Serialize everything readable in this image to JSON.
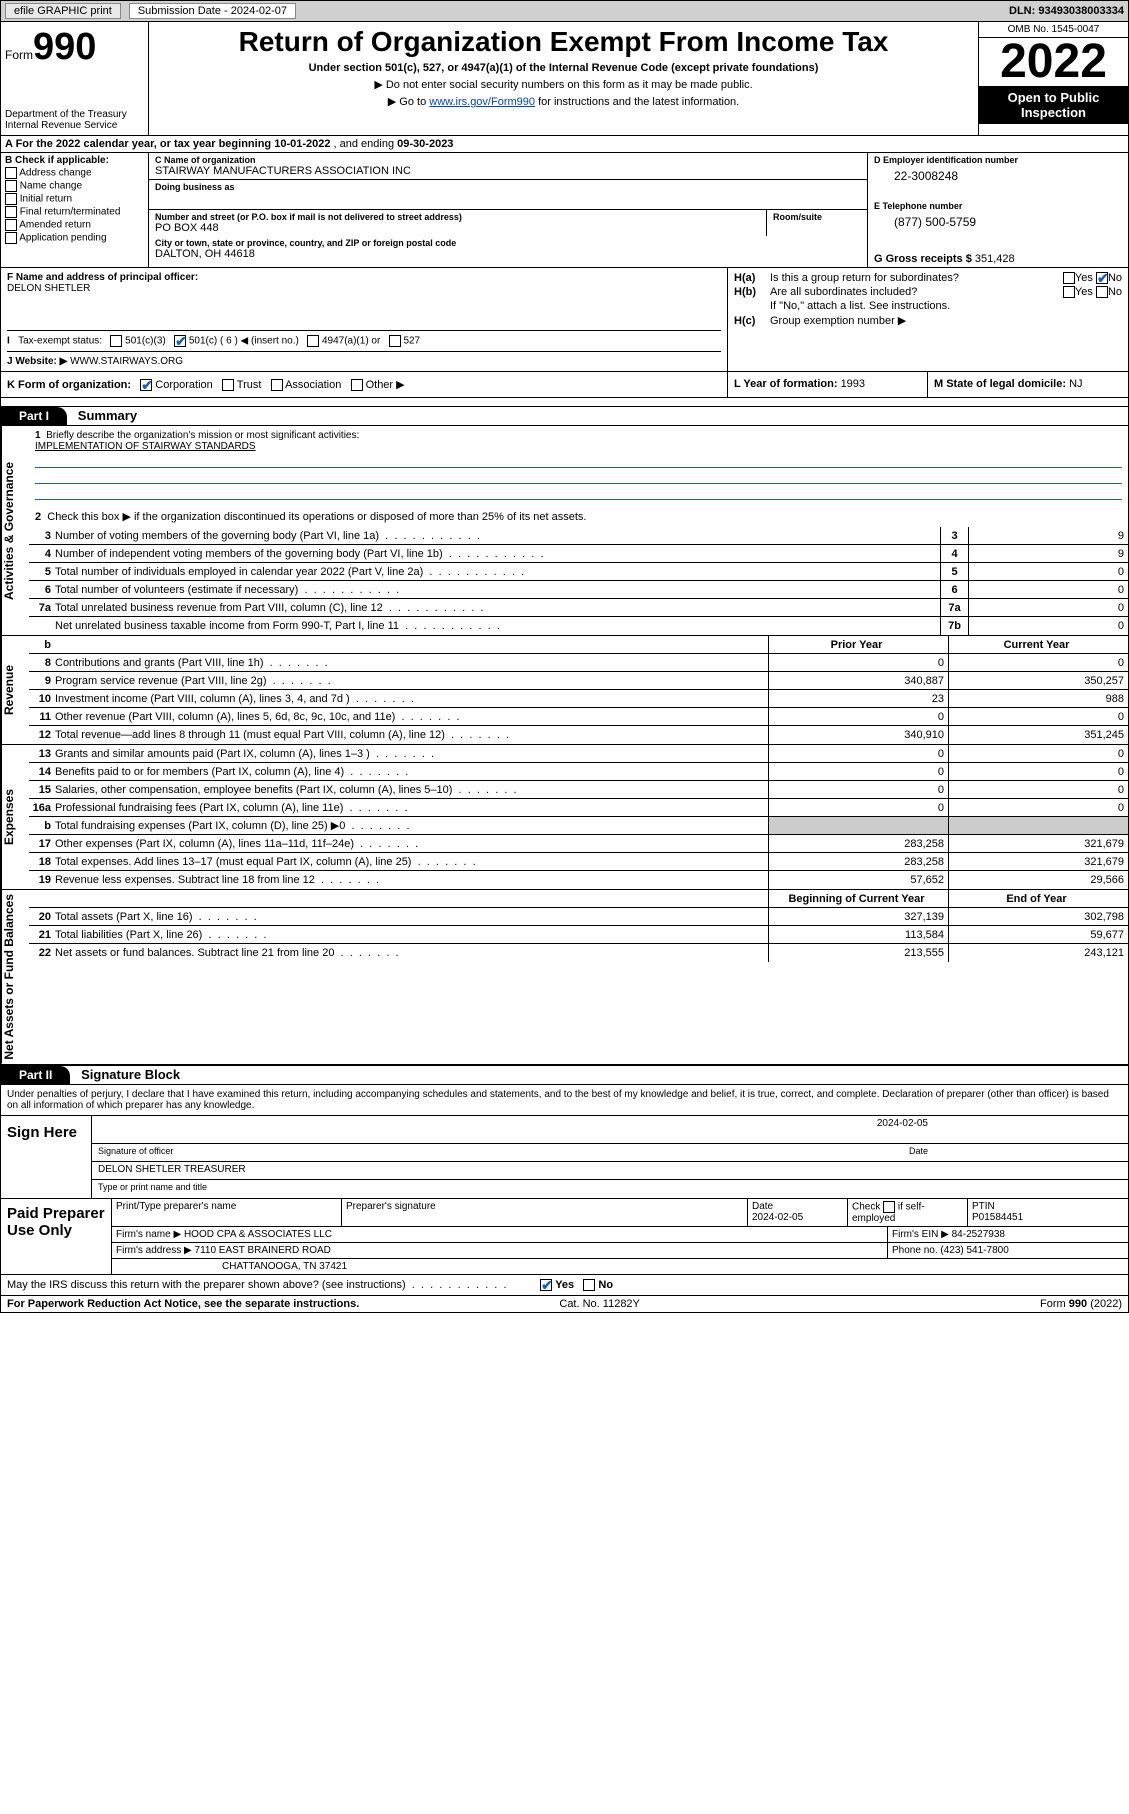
{
  "topbar": {
    "efile_label": "efile GRAPHIC print",
    "sub_label": "Submission Date - 2024-02-07",
    "dln": "DLN: 93493038003334"
  },
  "header": {
    "form_prefix": "Form",
    "form_number": "990",
    "dept": "Department of the Treasury",
    "irs": "Internal Revenue Service",
    "title": "Return of Organization Exempt From Income Tax",
    "subtitle": "Under section 501(c), 527, or 4947(a)(1) of the Internal Revenue Code (except private foundations)",
    "note1": "▶ Do not enter social security numbers on this form as it may be made public.",
    "note2_pre": "▶ Go to ",
    "note2_link": "www.irs.gov/Form990",
    "note2_post": " for instructions and the latest information.",
    "omb": "OMB No. 1545-0047",
    "year": "2022",
    "open": "Open to Public Inspection"
  },
  "row_a": {
    "prefix": "A For the 2022 calendar year, or tax year beginning ",
    "begin": "10-01-2022",
    "mid": " , and ending ",
    "end": "09-30-2023"
  },
  "b": {
    "title": "B Check if applicable:",
    "opts": [
      "Address change",
      "Name change",
      "Initial return",
      "Final return/terminated",
      "Amended return",
      "Application pending"
    ]
  },
  "c": {
    "name_lbl": "C Name of organization",
    "name": "STAIRWAY MANUFACTURERS ASSOCIATION INC",
    "dba_lbl": "Doing business as",
    "street_lbl": "Number and street (or P.O. box if mail is not delivered to street address)",
    "street": "PO BOX 448",
    "suite_lbl": "Room/suite",
    "city_lbl": "City or town, state or province, country, and ZIP or foreign postal code",
    "city": "DALTON, OH  44618"
  },
  "d": {
    "ein_lbl": "D Employer identification number",
    "ein": "22-3008248",
    "tel_lbl": "E Telephone number",
    "tel": "(877) 500-5759",
    "gross_lbl": "G Gross receipts $ ",
    "gross": "351,428"
  },
  "f": {
    "lbl": "F Name and address of principal officer:",
    "name": "DELON SHETLER"
  },
  "h": {
    "a_lbl": "H(a)",
    "a_txt": "Is this a group return for subordinates?",
    "b_lbl": "H(b)",
    "b_txt": "Are all subordinates included?",
    "b_note": "If \"No,\" attach a list. See instructions.",
    "c_lbl": "H(c)",
    "c_txt": "Group exemption number ▶",
    "yes": "Yes",
    "no": "No"
  },
  "i": {
    "lbl": "Tax-exempt status:",
    "o1": "501(c)(3)",
    "o2": "501(c) ( 6 ) ◀ (insert no.)",
    "o3": "4947(a)(1) or",
    "o4": "527"
  },
  "j": {
    "lbl": "J   Website: ▶ ",
    "val": "WWW.STAIRWAYS.ORG"
  },
  "k": {
    "lbl": "K Form of organization:",
    "o1": "Corporation",
    "o2": "Trust",
    "o3": "Association",
    "o4": "Other ▶"
  },
  "l": {
    "lbl": "L Year of formation: ",
    "val": "1993"
  },
  "m": {
    "lbl": "M State of legal domicile: ",
    "val": "NJ"
  },
  "parts": {
    "p1": "Part I",
    "p1_title": "Summary",
    "p2": "Part II",
    "p2_title": "Signature Block"
  },
  "summary": {
    "vlabels": {
      "gov": "Activities & Governance",
      "rev": "Revenue",
      "exp": "Expenses",
      "net": "Net Assets or Fund Balances"
    },
    "l1": "Briefly describe the organization's mission or most significant activities:",
    "mission": "IMPLEMENTATION OF STAIRWAY STANDARDS",
    "l2": "Check this box ▶       if the organization discontinued its operations or disposed of more than 25% of its net assets.",
    "rows_gov": [
      {
        "n": "3",
        "t": "Number of voting members of the governing body (Part VI, line 1a)",
        "b": "3",
        "v": "9"
      },
      {
        "n": "4",
        "t": "Number of independent voting members of the governing body (Part VI, line 1b)",
        "b": "4",
        "v": "9"
      },
      {
        "n": "5",
        "t": "Total number of individuals employed in calendar year 2022 (Part V, line 2a)",
        "b": "5",
        "v": "0"
      },
      {
        "n": "6",
        "t": "Total number of volunteers (estimate if necessary)",
        "b": "6",
        "v": "0"
      },
      {
        "n": "7a",
        "t": "Total unrelated business revenue from Part VIII, column (C), line 12",
        "b": "7a",
        "v": "0"
      },
      {
        "n": "",
        "t": "Net unrelated business taxable income from Form 990-T, Part I, line 11",
        "b": "7b",
        "v": "0"
      }
    ],
    "col_hdr": {
      "n": "b",
      "py": "Prior Year",
      "cy": "Current Year"
    },
    "rows_rev": [
      {
        "n": "8",
        "t": "Contributions and grants (Part VIII, line 1h)",
        "py": "0",
        "cy": "0"
      },
      {
        "n": "9",
        "t": "Program service revenue (Part VIII, line 2g)",
        "py": "340,887",
        "cy": "350,257"
      },
      {
        "n": "10",
        "t": "Investment income (Part VIII, column (A), lines 3, 4, and 7d )",
        "py": "23",
        "cy": "988"
      },
      {
        "n": "11",
        "t": "Other revenue (Part VIII, column (A), lines 5, 6d, 8c, 9c, 10c, and 11e)",
        "py": "0",
        "cy": "0"
      },
      {
        "n": "12",
        "t": "Total revenue—add lines 8 through 11 (must equal Part VIII, column (A), line 12)",
        "py": "340,910",
        "cy": "351,245"
      }
    ],
    "rows_exp": [
      {
        "n": "13",
        "t": "Grants and similar amounts paid (Part IX, column (A), lines 1–3 )",
        "py": "0",
        "cy": "0"
      },
      {
        "n": "14",
        "t": "Benefits paid to or for members (Part IX, column (A), line 4)",
        "py": "0",
        "cy": "0"
      },
      {
        "n": "15",
        "t": "Salaries, other compensation, employee benefits (Part IX, column (A), lines 5–10)",
        "py": "0",
        "cy": "0"
      },
      {
        "n": "16a",
        "t": "Professional fundraising fees (Part IX, column (A), line 11e)",
        "py": "0",
        "cy": "0"
      },
      {
        "n": "b",
        "t": "Total fundraising expenses (Part IX, column (D), line 25) ▶0",
        "py": "",
        "cy": "",
        "grey": true
      },
      {
        "n": "17",
        "t": "Other expenses (Part IX, column (A), lines 11a–11d, 11f–24e)",
        "py": "283,258",
        "cy": "321,679"
      },
      {
        "n": "18",
        "t": "Total expenses. Add lines 13–17 (must equal Part IX, column (A), line 25)",
        "py": "283,258",
        "cy": "321,679"
      },
      {
        "n": "19",
        "t": "Revenue less expenses. Subtract line 18 from line 12",
        "py": "57,652",
        "cy": "29,566"
      }
    ],
    "col_hdr2": {
      "py": "Beginning of Current Year",
      "cy": "End of Year"
    },
    "rows_net": [
      {
        "n": "20",
        "t": "Total assets (Part X, line 16)",
        "py": "327,139",
        "cy": "302,798"
      },
      {
        "n": "21",
        "t": "Total liabilities (Part X, line 26)",
        "py": "113,584",
        "cy": "59,677"
      },
      {
        "n": "22",
        "t": "Net assets or fund balances. Subtract line 21 from line 20",
        "py": "213,555",
        "cy": "243,121"
      }
    ]
  },
  "sig": {
    "note": "Under penalties of perjury, I declare that I have examined this return, including accompanying schedules and statements, and to the best of my knowledge and belief, it is true, correct, and complete. Declaration of preparer (other than officer) is based on all information of which preparer has any knowledge.",
    "sign_here": "Sign Here",
    "sig_officer": "Signature of officer",
    "date_lbl": "Date",
    "date": "2024-02-05",
    "name": "DELON SHETLER  TREASURER",
    "type_lbl": "Type or print name and title"
  },
  "prep": {
    "lbl": "Paid Preparer Use Only",
    "h1": "Print/Type preparer's name",
    "h2": "Preparer's signature",
    "h3": "Date",
    "date": "2024-02-05",
    "h4": "Check        if self-employed",
    "h5": "PTIN",
    "ptin": "P01584451",
    "firm_lbl": "Firm's name    ▶ ",
    "firm": "HOOD CPA & ASSOCIATES LLC",
    "ein_lbl": "Firm's EIN ▶ ",
    "ein": "84-2527938",
    "addr_lbl": "Firm's address ▶ ",
    "addr1": "7110 EAST BRAINERD ROAD",
    "addr2": "CHATTANOOGA, TN  37421",
    "phone_lbl": "Phone no. ",
    "phone": "(423) 541-7800"
  },
  "may_discuss": "May the IRS discuss this return with the preparer shown above? (see instructions)",
  "foot": {
    "pra": "For Paperwork Reduction Act Notice, see the separate instructions.",
    "cat": "Cat. No. 11282Y",
    "form": "Form 990 (2022)"
  }
}
